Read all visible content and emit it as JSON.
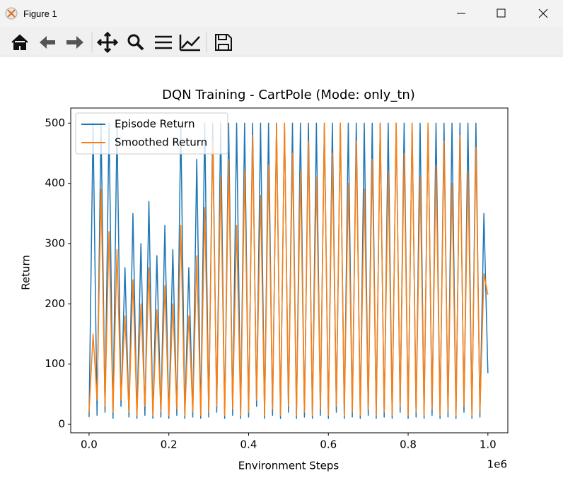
{
  "window": {
    "title": "Figure 1"
  },
  "chart_data": {
    "type": "line",
    "title": "DQN Training - CartPole (Mode: only_tn)",
    "x_label": "Environment Steps",
    "y_label": "Return",
    "x_offset_label": "1e6",
    "x": [
      0,
      0.01,
      0.02,
      0.03,
      0.04,
      0.05,
      0.06,
      0.07,
      0.08,
      0.09,
      0.1,
      0.11,
      0.12,
      0.13,
      0.14,
      0.15,
      0.16,
      0.17,
      0.18,
      0.19,
      0.2,
      0.21,
      0.22,
      0.23,
      0.24,
      0.25,
      0.26,
      0.27,
      0.28,
      0.29,
      0.3,
      0.31,
      0.32,
      0.33,
      0.34,
      0.35,
      0.36,
      0.37,
      0.38,
      0.39,
      0.4,
      0.41,
      0.42,
      0.43,
      0.44,
      0.45,
      0.46,
      0.47,
      0.48,
      0.49,
      0.5,
      0.51,
      0.52,
      0.53,
      0.54,
      0.55,
      0.56,
      0.57,
      0.58,
      0.59,
      0.6,
      0.61,
      0.62,
      0.63,
      0.64,
      0.65,
      0.66,
      0.67,
      0.68,
      0.69,
      0.7,
      0.71,
      0.72,
      0.73,
      0.74,
      0.75,
      0.76,
      0.77,
      0.78,
      0.79,
      0.8,
      0.81,
      0.82,
      0.83,
      0.84,
      0.85,
      0.86,
      0.87,
      0.88,
      0.89,
      0.9,
      0.91,
      0.92,
      0.93,
      0.94,
      0.95,
      0.96,
      0.97,
      0.98,
      0.99,
      1.0
    ],
    "series": [
      {
        "name": "Episode Return",
        "color": "#1f77b4",
        "values": [
          12,
          500,
          15,
          500,
          20,
          500,
          10,
          500,
          30,
          260,
          12,
          350,
          10,
          300,
          15,
          370,
          10,
          280,
          12,
          330,
          10,
          290,
          15,
          500,
          10,
          260,
          12,
          440,
          10,
          500,
          12,
          500,
          20,
          500,
          10,
          500,
          15,
          500,
          10,
          500,
          12,
          500,
          30,
          500,
          10,
          500,
          15,
          500,
          10,
          500,
          20,
          500,
          10,
          500,
          12,
          500,
          10,
          500,
          15,
          500,
          10,
          500,
          20,
          500,
          10,
          500,
          12,
          500,
          10,
          500,
          15,
          500,
          10,
          500,
          12,
          500,
          10,
          500,
          20,
          500,
          10,
          500,
          12,
          500,
          10,
          500,
          15,
          500,
          10,
          500,
          12,
          500,
          10,
          500,
          20,
          500,
          10,
          500,
          12,
          350,
          85
        ]
      },
      {
        "name": "Smoothed Return",
        "color": "#ff7f0e",
        "values": [
          20,
          150,
          40,
          390,
          30,
          320,
          20,
          290,
          40,
          180,
          20,
          240,
          15,
          200,
          30,
          260,
          15,
          190,
          20,
          230,
          15,
          200,
          25,
          330,
          15,
          180,
          20,
          280,
          15,
          360,
          20,
          470,
          30,
          410,
          15,
          440,
          25,
          330,
          15,
          420,
          20,
          480,
          40,
          380,
          15,
          430,
          25,
          500,
          15,
          500,
          30,
          450,
          15,
          420,
          20,
          470,
          15,
          410,
          25,
          500,
          15,
          450,
          30,
          500,
          15,
          400,
          20,
          470,
          15,
          390,
          25,
          440,
          15,
          500,
          20,
          420,
          15,
          500,
          30,
          450,
          15,
          500,
          20,
          410,
          15,
          500,
          25,
          430,
          15,
          470,
          20,
          400,
          15,
          480,
          30,
          420,
          15,
          460,
          20,
          250,
          215
        ]
      }
    ],
    "xlim": [
      -0.046,
      1.05
    ],
    "ylim": [
      -14,
      525
    ],
    "xticks": [
      {
        "value": 0,
        "label": "0.0"
      },
      0.2,
      0.4,
      0.6,
      0.8,
      {
        "value": 1,
        "label": "1.0"
      }
    ],
    "yticks": [
      0,
      100,
      200,
      300,
      400,
      500
    ],
    "legend": "upper left",
    "grid": false
  }
}
